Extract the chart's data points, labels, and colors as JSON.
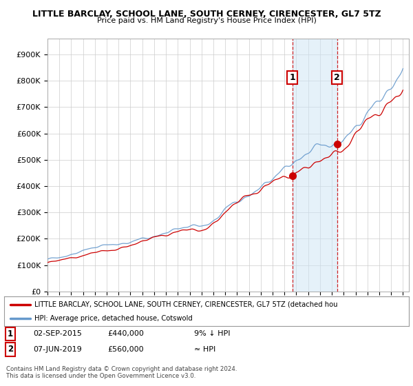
{
  "title": "LITTLE BARCLAY, SCHOOL LANE, SOUTH CERNEY, CIRENCESTER, GL7 5TZ",
  "subtitle": "Price paid vs. HM Land Registry's House Price Index (HPI)",
  "ylabel_ticks": [
    "£0",
    "£100K",
    "£200K",
    "£300K",
    "£400K",
    "£500K",
    "£600K",
    "£700K",
    "£800K",
    "£900K"
  ],
  "ytick_values": [
    0,
    100000,
    200000,
    300000,
    400000,
    500000,
    600000,
    700000,
    800000,
    900000
  ],
  "ylim": [
    0,
    960000
  ],
  "xlim_start": 1995.0,
  "xlim_end": 2025.5,
  "sale1_x": 2015.67,
  "sale1_y": 440000,
  "sale2_x": 2019.44,
  "sale2_y": 560000,
  "sale1_label": "1",
  "sale2_label": "2",
  "shade_color": "#cce4f5",
  "shade_alpha": 0.5,
  "red_line_color": "#cc0000",
  "blue_line_color": "#6699cc",
  "dashed_line_color": "#cc0000",
  "legend_line1": "LITTLE BARCLAY, SCHOOL LANE, SOUTH CERNEY, CIRENCESTER, GL7 5TZ (detached hou",
  "legend_line2": "HPI: Average price, detached house, Cotswold",
  "annotation1_date": "02-SEP-2015",
  "annotation1_price": "£440,000",
  "annotation1_hpi": "9% ↓ HPI",
  "annotation2_date": "07-JUN-2019",
  "annotation2_price": "£560,000",
  "annotation2_hpi": "≈ HPI",
  "footer": "Contains HM Land Registry data © Crown copyright and database right 2024.\nThis data is licensed under the Open Government Licence v3.0.",
  "background_color": "#ffffff",
  "plot_bg_color": "#ffffff",
  "grid_color": "#cccccc"
}
